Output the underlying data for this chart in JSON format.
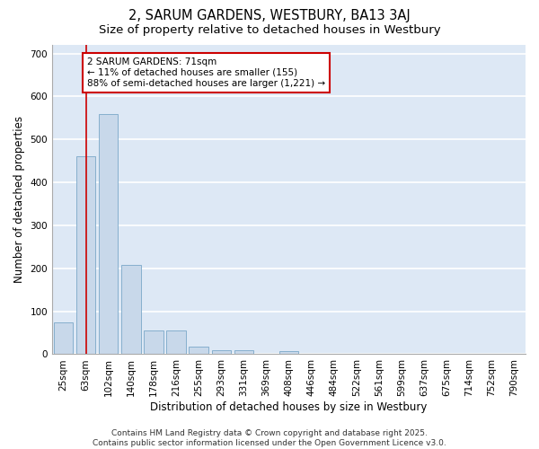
{
  "title": "2, SARUM GARDENS, WESTBURY, BA13 3AJ",
  "subtitle": "Size of property relative to detached houses in Westbury",
  "xlabel": "Distribution of detached houses by size in Westbury",
  "ylabel": "Number of detached properties",
  "categories": [
    "25sqm",
    "63sqm",
    "102sqm",
    "140sqm",
    "178sqm",
    "216sqm",
    "255sqm",
    "293sqm",
    "331sqm",
    "369sqm",
    "408sqm",
    "446sqm",
    "484sqm",
    "522sqm",
    "561sqm",
    "599sqm",
    "637sqm",
    "675sqm",
    "714sqm",
    "752sqm",
    "790sqm"
  ],
  "values": [
    75,
    460,
    560,
    207,
    55,
    55,
    18,
    10,
    9,
    0,
    8,
    0,
    0,
    0,
    0,
    0,
    0,
    0,
    0,
    0,
    0
  ],
  "bar_color": "#c8d8ea",
  "bar_edge_color": "#7aa8c8",
  "background_color": "#dde8f5",
  "grid_color": "#ffffff",
  "annotation_text": "2 SARUM GARDENS: 71sqm\n← 11% of detached houses are smaller (155)\n88% of semi-detached houses are larger (1,221) →",
  "annotation_box_color": "#ffffff",
  "annotation_box_edge": "#cc0000",
  "vline_x": 1.0,
  "vline_color": "#cc0000",
  "ylim": [
    0,
    720
  ],
  "yticks": [
    0,
    100,
    200,
    300,
    400,
    500,
    600,
    700
  ],
  "footer": "Contains HM Land Registry data © Crown copyright and database right 2025.\nContains public sector information licensed under the Open Government Licence v3.0.",
  "title_fontsize": 10.5,
  "subtitle_fontsize": 9.5,
  "axis_label_fontsize": 8.5,
  "tick_fontsize": 7.5,
  "annotation_fontsize": 7.5,
  "footer_fontsize": 6.5
}
